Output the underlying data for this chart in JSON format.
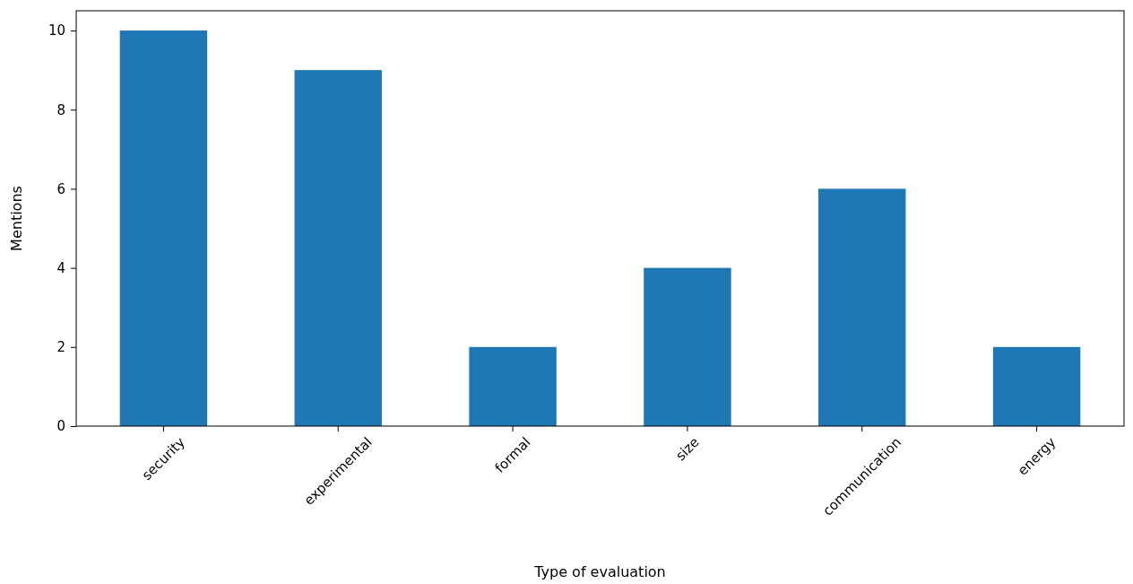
{
  "chart_data": {
    "type": "bar",
    "xlabel": "Type of evaluation",
    "ylabel": "Mentions",
    "categories": [
      "security",
      "experimental",
      "formal",
      "size",
      "communication",
      "energy"
    ],
    "values": [
      10,
      9,
      2,
      4,
      6,
      2
    ],
    "color": "#1f77b4",
    "ylim": [
      0,
      10.5
    ],
    "yticks": [
      0,
      2,
      4,
      6,
      8,
      10
    ],
    "grid": false
  }
}
